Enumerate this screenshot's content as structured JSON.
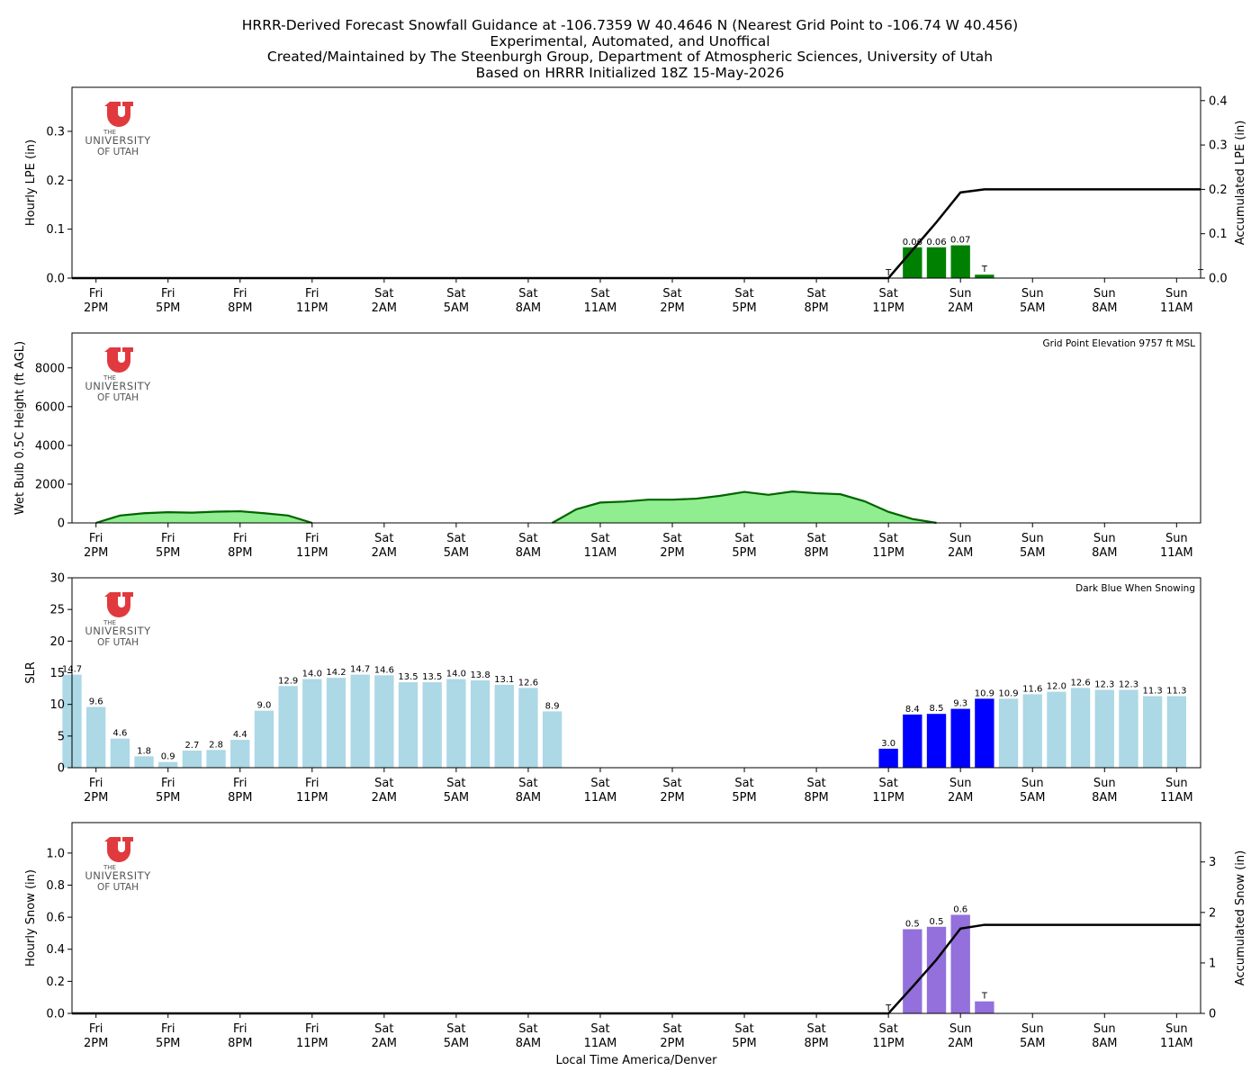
{
  "header": {
    "lines": [
      "HRRR-Derived Forecast Snowfall Guidance at -106.7359 W 40.4646 N (Nearest Grid Point to -106.74 W 40.456)",
      "Experimental, Automated, and Unoffical",
      "Created/Maintained by The Steenburgh Group, Department of Atmospheric Sciences, University of Utah",
      "Based on HRRR Initialized 18Z 15-May-2026"
    ]
  },
  "logo": {
    "line1": "THE",
    "line2": "UNIVERSITY",
    "line3": "OF UTAH",
    "color": "#e03a3e",
    "text_color": "#555555"
  },
  "x_axis": {
    "label": "Local Time America/Denver",
    "ticks": [
      {
        "hour": 0,
        "day": "Fri",
        "time": "2PM"
      },
      {
        "hour": 3,
        "day": "Fri",
        "time": "5PM"
      },
      {
        "hour": 6,
        "day": "Fri",
        "time": "8PM"
      },
      {
        "hour": 9,
        "day": "Fri",
        "time": "11PM"
      },
      {
        "hour": 12,
        "day": "Sat",
        "time": "2AM"
      },
      {
        "hour": 15,
        "day": "Sat",
        "time": "5AM"
      },
      {
        "hour": 18,
        "day": "Sat",
        "time": "8AM"
      },
      {
        "hour": 21,
        "day": "Sat",
        "time": "11AM"
      },
      {
        "hour": 24,
        "day": "Sat",
        "time": "2PM"
      },
      {
        "hour": 27,
        "day": "Sat",
        "time": "5PM"
      },
      {
        "hour": 30,
        "day": "Sat",
        "time": "8PM"
      },
      {
        "hour": 33,
        "day": "Sat",
        "time": "11PM"
      },
      {
        "hour": 36,
        "day": "Sun",
        "time": "2AM"
      },
      {
        "hour": 39,
        "day": "Sun",
        "time": "5AM"
      },
      {
        "hour": 42,
        "day": "Sun",
        "time": "8AM"
      },
      {
        "hour": 45,
        "day": "Sun",
        "time": "11AM"
      }
    ],
    "xlim": [
      -1,
      46
    ]
  },
  "chart_data": [
    {
      "type": "bar",
      "ylabel": "Hourly LPE (in)",
      "y2label": "Accumulated LPE (in)",
      "ylim": [
        0,
        0.39
      ],
      "y2lim": [
        0,
        0.43
      ],
      "yticks": [
        0.0,
        0.1,
        0.2,
        0.3
      ],
      "y2ticks": [
        0.0,
        0.1,
        0.2,
        0.3,
        0.4
      ],
      "bar_color": "#008000",
      "bars": [
        {
          "hour": 34,
          "value": 0.063,
          "label": "0.06"
        },
        {
          "hour": 35,
          "value": 0.063,
          "label": "0.06"
        },
        {
          "hour": 36,
          "value": 0.067,
          "label": "0.07"
        },
        {
          "hour": 37,
          "value": 0.007,
          "label": "T"
        }
      ],
      "trace_labels": [
        {
          "hour": 33,
          "label": "T"
        },
        {
          "hour": 46,
          "label": "T"
        }
      ],
      "accum_line": {
        "color": "#000000",
        "points": [
          [
            -1,
            0
          ],
          [
            33,
            0
          ],
          [
            34,
            0.063
          ],
          [
            35,
            0.126
          ],
          [
            36,
            0.193
          ],
          [
            37,
            0.2
          ],
          [
            46,
            0.2
          ]
        ]
      }
    },
    {
      "type": "area",
      "ylabel": "Wet Bulb 0.5C Height (ft AGL)",
      "ylim": [
        0,
        9800
      ],
      "yticks": [
        0,
        2000,
        4000,
        6000,
        8000
      ],
      "annotation": "Grid Point Elevation 9757 ft MSL",
      "fill_color": "#90ee90",
      "line_color": "#006400",
      "series": [
        {
          "hours": [
            0,
            1,
            2,
            3,
            4,
            5,
            6,
            7,
            8,
            9
          ],
          "values": [
            0,
            380,
            500,
            550,
            530,
            580,
            600,
            500,
            380,
            0
          ]
        },
        {
          "hours": [
            19,
            20,
            21,
            22,
            23,
            24,
            25,
            26,
            27,
            28,
            29,
            30,
            31,
            32,
            33,
            34,
            35
          ],
          "values": [
            0,
            700,
            1050,
            1100,
            1200,
            1200,
            1250,
            1400,
            1600,
            1450,
            1620,
            1530,
            1480,
            1120,
            570,
            200,
            0
          ]
        }
      ]
    },
    {
      "type": "bar",
      "ylabel": "SLR",
      "ylim": [
        0,
        30
      ],
      "yticks": [
        0,
        5,
        10,
        15,
        20,
        25,
        30
      ],
      "annotation": "Dark Blue When Snowing",
      "light_color": "#add8e6",
      "snow_color": "#0000ff",
      "bars": [
        {
          "hour": -1,
          "value": 14.7,
          "label": "14.7",
          "snowing": false
        },
        {
          "hour": 0,
          "value": 9.6,
          "label": "9.6",
          "snowing": false
        },
        {
          "hour": 1,
          "value": 4.6,
          "label": "4.6",
          "snowing": false
        },
        {
          "hour": 2,
          "value": 1.8,
          "label": "1.8",
          "snowing": false
        },
        {
          "hour": 3,
          "value": 0.9,
          "label": "0.9",
          "snowing": false
        },
        {
          "hour": 4,
          "value": 2.7,
          "label": "2.7",
          "snowing": false
        },
        {
          "hour": 5,
          "value": 2.8,
          "label": "2.8",
          "snowing": false
        },
        {
          "hour": 6,
          "value": 4.4,
          "label": "4.4",
          "snowing": false
        },
        {
          "hour": 7,
          "value": 9.0,
          "label": "9.0",
          "snowing": false
        },
        {
          "hour": 8,
          "value": 12.9,
          "label": "12.9",
          "snowing": false
        },
        {
          "hour": 9,
          "value": 14.0,
          "label": "14.0",
          "snowing": false
        },
        {
          "hour": 10,
          "value": 14.2,
          "label": "14.2",
          "snowing": false
        },
        {
          "hour": 11,
          "value": 14.7,
          "label": "14.7",
          "snowing": false
        },
        {
          "hour": 12,
          "value": 14.6,
          "label": "14.6",
          "snowing": false
        },
        {
          "hour": 13,
          "value": 13.5,
          "label": "13.5",
          "snowing": false
        },
        {
          "hour": 14,
          "value": 13.5,
          "label": "13.5",
          "snowing": false
        },
        {
          "hour": 15,
          "value": 14.0,
          "label": "14.0",
          "snowing": false
        },
        {
          "hour": 16,
          "value": 13.8,
          "label": "13.8",
          "snowing": false
        },
        {
          "hour": 17,
          "value": 13.1,
          "label": "13.1",
          "snowing": false
        },
        {
          "hour": 18,
          "value": 12.6,
          "label": "12.6",
          "snowing": false
        },
        {
          "hour": 19,
          "value": 8.9,
          "label": "8.9",
          "snowing": false
        },
        {
          "hour": 33,
          "value": 3.0,
          "label": "3.0",
          "snowing": true
        },
        {
          "hour": 34,
          "value": 8.4,
          "label": "8.4",
          "snowing": true
        },
        {
          "hour": 35,
          "value": 8.5,
          "label": "8.5",
          "snowing": true
        },
        {
          "hour": 36,
          "value": 9.3,
          "label": "9.3",
          "snowing": true
        },
        {
          "hour": 37,
          "value": 10.9,
          "label": "10.9",
          "snowing": true
        },
        {
          "hour": 38,
          "value": 10.9,
          "label": "10.9",
          "snowing": false
        },
        {
          "hour": 39,
          "value": 11.6,
          "label": "11.6",
          "snowing": false
        },
        {
          "hour": 40,
          "value": 12.0,
          "label": "12.0",
          "snowing": false
        },
        {
          "hour": 41,
          "value": 12.6,
          "label": "12.6",
          "snowing": false
        },
        {
          "hour": 42,
          "value": 12.3,
          "label": "12.3",
          "snowing": false
        },
        {
          "hour": 43,
          "value": 12.3,
          "label": "12.3",
          "snowing": false
        },
        {
          "hour": 44,
          "value": 11.3,
          "label": "11.3",
          "snowing": false
        },
        {
          "hour": 45,
          "value": 11.3,
          "label": "11.3",
          "snowing": false
        }
      ]
    },
    {
      "type": "bar",
      "ylabel": "Hourly Snow (in)",
      "y2label": "Accumulated Snow (in)",
      "ylim": [
        0,
        1.19
      ],
      "y2lim": [
        0,
        3.78
      ],
      "yticks": [
        0.0,
        0.2,
        0.4,
        0.6,
        0.8,
        1.0
      ],
      "y2ticks": [
        0,
        1,
        2,
        3
      ],
      "bar_color": "#9370db",
      "bars": [
        {
          "hour": 34,
          "value": 0.525,
          "label": "0.5"
        },
        {
          "hour": 35,
          "value": 0.54,
          "label": "0.5"
        },
        {
          "hour": 36,
          "value": 0.615,
          "label": "0.6"
        },
        {
          "hour": 37,
          "value": 0.075,
          "label": "T"
        }
      ],
      "trace_labels": [
        {
          "hour": 33,
          "label": "T"
        }
      ],
      "accum_line": {
        "color": "#000000",
        "points": [
          [
            -1,
            0
          ],
          [
            33,
            0
          ],
          [
            34,
            0.525
          ],
          [
            35,
            1.065
          ],
          [
            36,
            1.68
          ],
          [
            37,
            1.755
          ],
          [
            46,
            1.755
          ]
        ]
      }
    }
  ]
}
